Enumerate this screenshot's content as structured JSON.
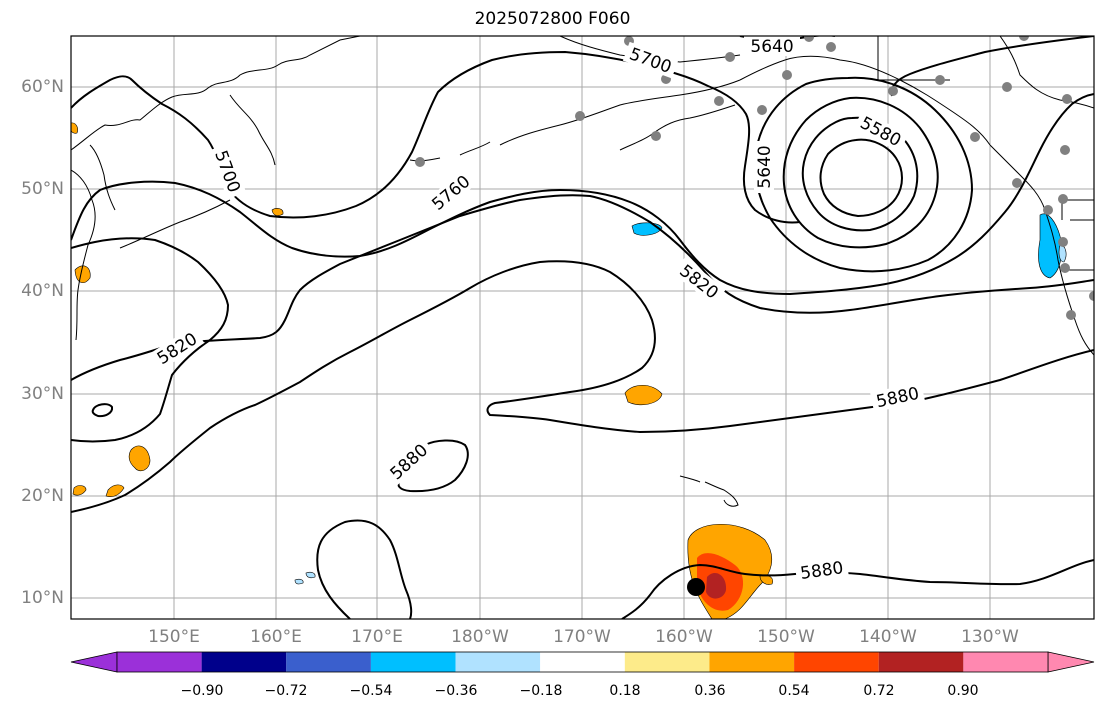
{
  "title": "2025072800 F060",
  "lat_labels": [
    "60°N",
    "50°N",
    "40°N",
    "30°N",
    "20°N",
    "10°N"
  ],
  "lon_labels": [
    "150°E",
    "160°E",
    "170°E",
    "180°W",
    "170°W",
    "160°W",
    "150°W",
    "140°W",
    "130°W"
  ],
  "contour_labels": [
    "5640",
    "5700",
    "5580",
    "5640",
    "5700",
    "5760",
    "5820",
    "5820",
    "5880",
    "5880",
    "5880"
  ],
  "colorbar": {
    "colors": [
      "#9b30d9",
      "#00008b",
      "#3a5fcd",
      "#00bfff",
      "#b0e2ff",
      "#ffffff",
      "#fdeb8a",
      "#ffa500",
      "#ff4500",
      "#b22222",
      "#ff88b0"
    ],
    "tick_labels": [
      "−0.90",
      "−0.72",
      "−0.54",
      "−0.36",
      "−0.18",
      "0.18",
      "0.36",
      "0.54",
      "0.72",
      "0.90"
    ]
  },
  "colors": {
    "positive_fill": "#ffa500",
    "strong_fill": "#ff4500",
    "peak_fill": "#b22222",
    "negative_fill": "#00bfff",
    "station_marker": "#808080",
    "storm_marker": "#000000"
  }
}
